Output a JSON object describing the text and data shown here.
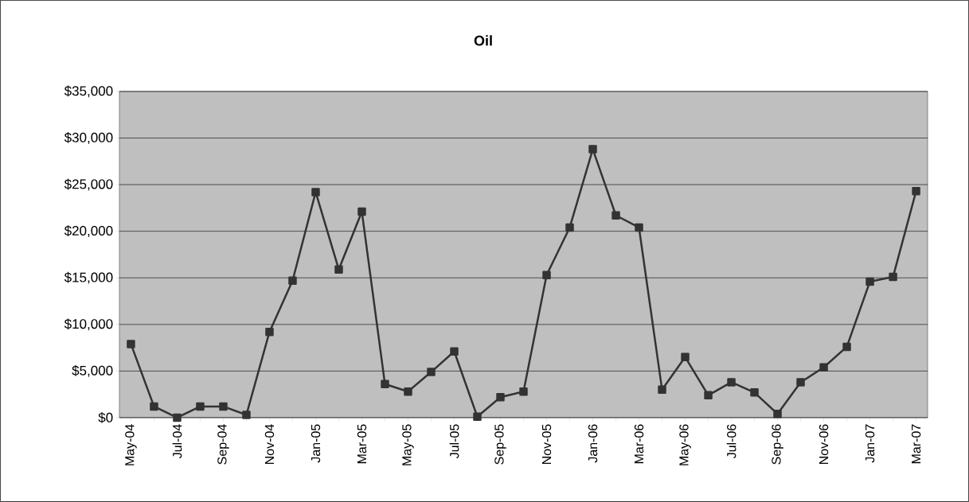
{
  "chart_data": {
    "type": "line",
    "title": "Oil",
    "categories": [
      "May-04",
      null,
      "Jul-04",
      null,
      "Sep-04",
      null,
      "Nov-04",
      null,
      "Jan-05",
      null,
      "Mar-05",
      null,
      "May-05",
      null,
      "Jul-05",
      null,
      "Sep-05",
      null,
      "Nov-05",
      null,
      "Jan-06",
      null,
      "Mar-06",
      null,
      "May-06",
      null,
      "Jul-06",
      null,
      "Sep-06",
      null,
      "Nov-06",
      null,
      "Jan-07",
      null,
      "Mar-07"
    ],
    "values": [
      7900,
      1200,
      0,
      1200,
      1200,
      300,
      9200,
      14700,
      24200,
      15900,
      22100,
      3600,
      2800,
      4900,
      7100,
      100,
      2200,
      2800,
      15300,
      20400,
      28800,
      21700,
      20400,
      3000,
      6500,
      2400,
      3800,
      2700,
      400,
      3800,
      5400,
      7600,
      14600,
      15100,
      24300
    ],
    "color": "#333333",
    "ylim": [
      0,
      35000
    ],
    "yticks": [
      {
        "value": 0,
        "label": "$0"
      },
      {
        "value": 5000,
        "label": "$5,000"
      },
      {
        "value": 10000,
        "label": "$10,000"
      },
      {
        "value": 15000,
        "label": "$15,000"
      },
      {
        "value": 20000,
        "label": "$20,000"
      },
      {
        "value": 25000,
        "label": "$25,000"
      },
      {
        "value": 30000,
        "label": "$30,000"
      },
      {
        "value": 35000,
        "label": "$35,000"
      }
    ],
    "grid": "y",
    "marker": "square"
  }
}
